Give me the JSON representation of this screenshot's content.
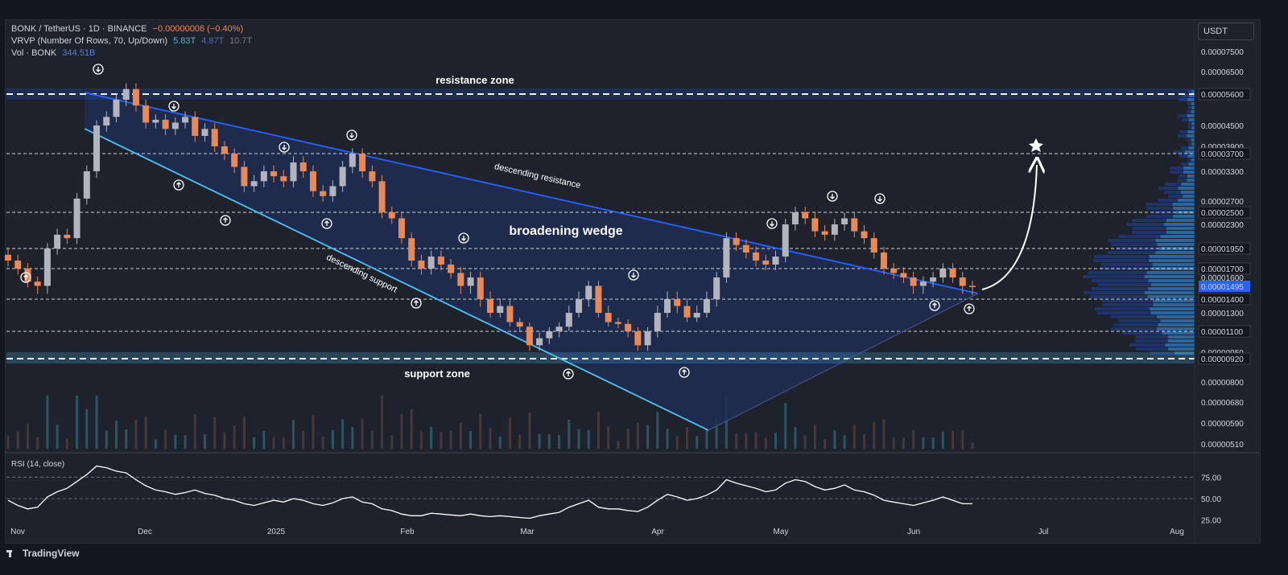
{
  "header": {
    "symbol": "BONK / TetherUS · 1D · BINANCE",
    "change": "−0.00000006 (−0.40%)",
    "vrvp_label": "VRVP (Number Of Rows, 70, Up/Down)",
    "vrvp_v1": "5.83T",
    "vrvp_v2": "4.87T",
    "vrvp_v3": "10.7T",
    "vol_label": "Vol · BONK",
    "vol_value": "344.51B"
  },
  "currency_button": "USDT",
  "branding": "TradingView",
  "colors": {
    "up": "#b2b5be",
    "down": "#e8895a",
    "wedge_fill": "#1f2d54",
    "resistance_line": "#2962ff",
    "support_line": "#4fc3f7",
    "last_price_bg": "#2962ff"
  },
  "chart_data": {
    "type": "candlestick",
    "x_axis": {
      "tick_labels": [
        "Nov",
        "Dec",
        "2025",
        "Feb",
        "Mar",
        "Apr",
        "May",
        "Jun",
        "Jul",
        "Aug"
      ]
    },
    "y_axis": {
      "unit": "USDT",
      "tick_labels": [
        "0.00007500",
        "0.00006500",
        "0.00005600",
        "0.00004500",
        "0.00003900",
        "0.00003700",
        "0.00003300",
        "0.00002700",
        "0.00002500",
        "0.00002300",
        "0.00001950",
        "0.00001700",
        "0.00001600",
        "0.00001495",
        "0.00001400",
        "0.00001300",
        "0.00001100",
        "0.00000950",
        "0.00000920",
        "0.00000800",
        "0.00000680",
        "0.00000590",
        "0.00000510"
      ],
      "last_price": "0.00001495"
    },
    "horizontal_levels": [
      5.6e-05,
      3.7e-05,
      2.5e-05,
      1.95e-05,
      1.7e-05,
      1.4e-05,
      1.1e-05,
      9.2e-06
    ],
    "annotations": {
      "resistance_zone": "resistance zone",
      "support_zone": "support zone",
      "descending_resistance": "descending resistance",
      "descending_support": "descending support",
      "pattern": "broadening wedge"
    },
    "series": [
      {
        "name": "BONK/USDT",
        "close": [
          1.8e-05,
          1.7e-05,
          1.55e-05,
          1.5e-05,
          1.95e-05,
          2.15e-05,
          2.1e-05,
          2.75e-05,
          3.3e-05,
          4.5e-05,
          4.8e-05,
          5.4e-05,
          5.8e-05,
          5.2e-05,
          4.6e-05,
          4.7e-05,
          4.4e-05,
          4.6e-05,
          4.8e-05,
          4.2e-05,
          4.4e-05,
          3.9e-05,
          3.7e-05,
          3.4e-05,
          3e-05,
          3.1e-05,
          3.3e-05,
          3.2e-05,
          3.1e-05,
          3.5e-05,
          3.3e-05,
          2.9e-05,
          2.8e-05,
          3e-05,
          3.4e-05,
          3.7e-05,
          3.3e-05,
          3.1e-05,
          2.5e-05,
          2.4e-05,
          2.1e-05,
          1.8e-05,
          1.7e-05,
          1.85e-05,
          1.75e-05,
          1.65e-05,
          1.5e-05,
          1.6e-05,
          1.4e-05,
          1.3e-05,
          1.35e-05,
          1.2e-05,
          1.15e-05,
          1e-05,
          1.05e-05,
          1.1e-05,
          1.15e-05,
          1.3e-05,
          1.4e-05,
          1.5e-05,
          1.3e-05,
          1.2e-05,
          1.18e-05,
          1.1e-05,
          1e-05,
          1.1e-05,
          1.3e-05,
          1.4e-05,
          1.35e-05,
          1.25e-05,
          1.3e-05,
          1.4e-05,
          1.6e-05,
          2.1e-05,
          2e-05,
          1.9e-05,
          1.8e-05,
          1.75e-05,
          1.85e-05,
          2.3e-05,
          2.5e-05,
          2.4e-05,
          2.2e-05,
          2.15e-05,
          2.3e-05,
          2.4e-05,
          2.2e-05,
          2.1e-05,
          1.9e-05,
          1.7e-05,
          1.65e-05,
          1.6e-05,
          1.5e-05,
          1.55e-05,
          1.6e-05,
          1.7e-05,
          1.6e-05,
          1.5e-05,
          1.49e-05
        ]
      }
    ],
    "volume": {
      "name": "Vol · BONK",
      "last": "344.51B"
    },
    "rsi": {
      "label": "RSI (14, close)",
      "tick_labels": [
        "75.00",
        "50.00",
        "25.00"
      ],
      "ylim": [
        20,
        95
      ],
      "values": [
        48,
        42,
        38,
        40,
        52,
        58,
        62,
        70,
        78,
        88,
        86,
        82,
        80,
        72,
        65,
        60,
        58,
        55,
        57,
        60,
        56,
        54,
        50,
        48,
        44,
        42,
        45,
        48,
        46,
        50,
        48,
        44,
        42,
        45,
        50,
        52,
        46,
        44,
        38,
        36,
        32,
        30,
        30,
        33,
        32,
        31,
        30,
        32,
        30,
        29,
        30,
        29,
        28,
        27,
        30,
        32,
        34,
        40,
        44,
        48,
        40,
        38,
        38,
        36,
        35,
        40,
        48,
        55,
        52,
        48,
        50,
        54,
        60,
        72,
        68,
        65,
        62,
        58,
        60,
        68,
        72,
        70,
        64,
        60,
        62,
        66,
        60,
        58,
        54,
        48,
        46,
        44,
        42,
        45,
        48,
        52,
        48,
        44,
        44
      ]
    }
  }
}
